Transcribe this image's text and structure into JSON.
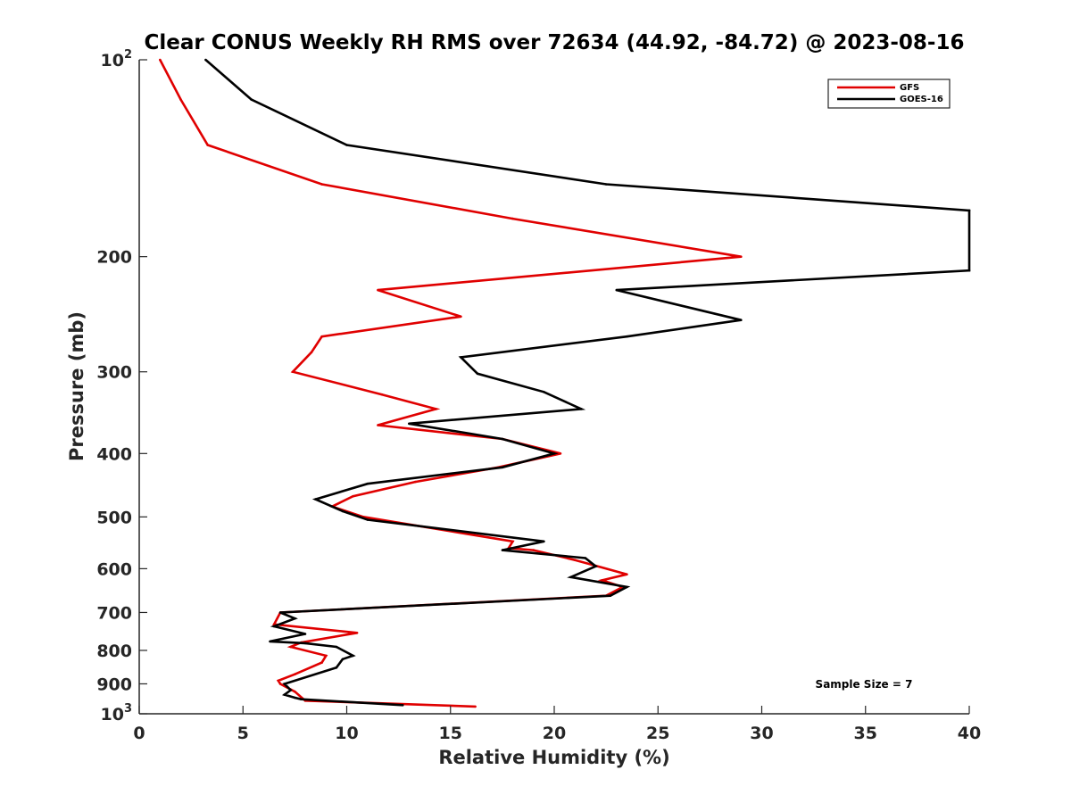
{
  "chart_data": {
    "type": "line",
    "title": "Clear CONUS Weekly RH RMS over 72634 (44.92, -84.72) @ 2023-08-16",
    "xlabel": "Relative Humidity (%)",
    "ylabel": "Pressure (mb)",
    "xlim": [
      0,
      40
    ],
    "ylim": [
      100,
      1000
    ],
    "y_scale": "log",
    "y_reversed": true,
    "x_ticks": [
      {
        "value": 0,
        "label": "0"
      },
      {
        "value": 5,
        "label": "5"
      },
      {
        "value": 10,
        "label": "10"
      },
      {
        "value": 15,
        "label": "15"
      },
      {
        "value": 20,
        "label": "20"
      },
      {
        "value": 25,
        "label": "25"
      },
      {
        "value": 30,
        "label": "30"
      },
      {
        "value": 35,
        "label": "35"
      },
      {
        "value": 40,
        "label": "40"
      }
    ],
    "y_ticks": [
      {
        "value": 100,
        "label": "10",
        "exponent": "2"
      },
      {
        "value": 200,
        "label": "200"
      },
      {
        "value": 300,
        "label": "300"
      },
      {
        "value": 400,
        "label": "400"
      },
      {
        "value": 500,
        "label": "500"
      },
      {
        "value": 600,
        "label": "600"
      },
      {
        "value": 700,
        "label": "700"
      },
      {
        "value": 800,
        "label": "800"
      },
      {
        "value": 900,
        "label": "900"
      },
      {
        "value": 1000,
        "label": "10",
        "exponent": "3"
      }
    ],
    "grid": false,
    "legend_position": "top-right",
    "annotation": "Sample Size = 7",
    "series": [
      {
        "name": "GFS",
        "color": "#e00000",
        "points": [
          [
            1.0,
            100
          ],
          [
            2.0,
            115
          ],
          [
            3.3,
            135
          ],
          [
            8.8,
            155
          ],
          [
            18.0,
            175
          ],
          [
            29.0,
            200
          ],
          [
            11.5,
            225
          ],
          [
            15.5,
            247
          ],
          [
            8.8,
            265
          ],
          [
            8.3,
            280
          ],
          [
            7.4,
            300
          ],
          [
            11.7,
            325
          ],
          [
            14.3,
            342
          ],
          [
            11.5,
            362
          ],
          [
            17.5,
            380
          ],
          [
            20.3,
            400
          ],
          [
            17.3,
            420
          ],
          [
            13.3,
            442
          ],
          [
            10.3,
            465
          ],
          [
            9.3,
            482
          ],
          [
            10.8,
            500
          ],
          [
            18.0,
            545
          ],
          [
            17.8,
            558
          ],
          [
            19.0,
            562
          ],
          [
            21.0,
            582
          ],
          [
            23.5,
            612
          ],
          [
            22.3,
            625
          ],
          [
            23.3,
            640
          ],
          [
            22.5,
            660
          ],
          [
            6.8,
            700
          ],
          [
            6.5,
            730
          ],
          [
            10.5,
            752
          ],
          [
            7.8,
            778
          ],
          [
            7.3,
            790
          ],
          [
            9.0,
            815
          ],
          [
            8.8,
            835
          ],
          [
            7.5,
            870
          ],
          [
            6.7,
            890
          ],
          [
            6.8,
            900
          ],
          [
            7.5,
            925
          ],
          [
            8.0,
            955
          ],
          [
            16.2,
            975
          ]
        ]
      },
      {
        "name": "GOES-16",
        "color": "#000000",
        "points": [
          [
            3.2,
            100
          ],
          [
            5.4,
            115
          ],
          [
            10.0,
            135
          ],
          [
            22.5,
            155
          ],
          [
            40.0,
            170
          ],
          [
            40.0,
            210
          ],
          [
            23.0,
            225
          ],
          [
            29.0,
            250
          ],
          [
            23.5,
            265
          ],
          [
            15.5,
            285
          ],
          [
            16.3,
            302
          ],
          [
            19.5,
            322
          ],
          [
            21.3,
            342
          ],
          [
            13.0,
            360
          ],
          [
            17.5,
            380
          ],
          [
            20.0,
            400
          ],
          [
            17.5,
            420
          ],
          [
            11.0,
            445
          ],
          [
            8.5,
            470
          ],
          [
            9.8,
            490
          ],
          [
            11.0,
            505
          ],
          [
            19.5,
            545
          ],
          [
            17.5,
            562
          ],
          [
            21.5,
            578
          ],
          [
            22.0,
            595
          ],
          [
            20.8,
            618
          ],
          [
            23.5,
            640
          ],
          [
            22.7,
            660
          ],
          [
            6.8,
            700
          ],
          [
            7.5,
            715
          ],
          [
            6.5,
            735
          ],
          [
            8.0,
            755
          ],
          [
            6.3,
            775
          ],
          [
            8.0,
            780
          ],
          [
            9.5,
            790
          ],
          [
            10.3,
            815
          ],
          [
            9.8,
            825
          ],
          [
            9.5,
            850
          ],
          [
            7.0,
            900
          ],
          [
            7.3,
            920
          ],
          [
            7.0,
            935
          ],
          [
            7.5,
            945
          ],
          [
            7.8,
            950
          ],
          [
            12.7,
            970
          ]
        ]
      }
    ]
  }
}
